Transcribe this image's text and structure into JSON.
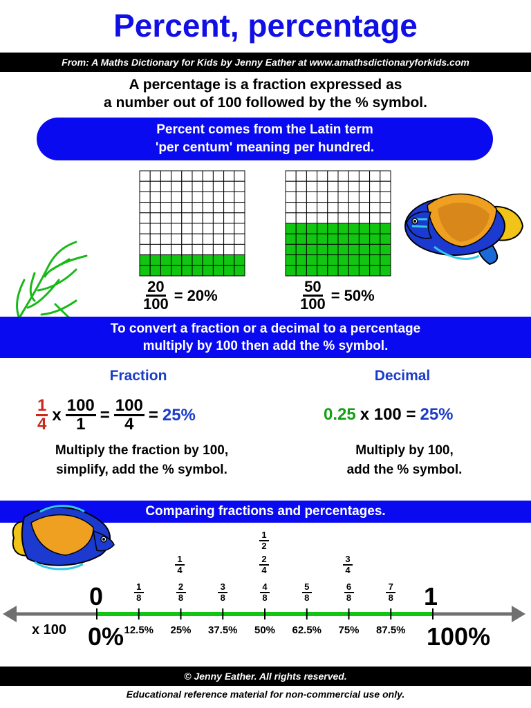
{
  "title": "Percent, percentage",
  "source": "From: A Maths Dictionary for Kids by Jenny Eather at www.amathsdictionaryforkids.com",
  "intro": {
    "line1": "A percentage is a fraction expressed as",
    "line2": "a number out of 100 followed by the % symbol."
  },
  "latin": {
    "line1": "Percent comes from the Latin term",
    "line2": "'per centum' meaning per hundred."
  },
  "grids": [
    {
      "filled_rows": 2,
      "fill_color": "#11c611",
      "numerator": "20",
      "denominator": "100",
      "result": "= 20%"
    },
    {
      "filled_rows": 5,
      "fill_color": "#11c611",
      "numerator": "50",
      "denominator": "100",
      "result": "= 50%"
    }
  ],
  "convert": {
    "line1": "To convert a fraction or a decimal to a percentage",
    "line2": "multiply by 100 then add the % symbol."
  },
  "fraction_col": {
    "heading": "Fraction",
    "f1_num": "1",
    "f1_den": "4",
    "times": "x",
    "f2_num": "100",
    "f2_den": "1",
    "eq1": "=",
    "f3_num": "100",
    "f3_den": "4",
    "eq2": "=",
    "result": "25%",
    "explain1": "Multiply the fraction by 100,",
    "explain2": "simplify, add the % symbol."
  },
  "decimal_col": {
    "heading": "Decimal",
    "decimal": "0.25",
    "rest": "x 100 =",
    "result": "25%",
    "explain1": "Multiply by 100,",
    "explain2": "add the % symbol."
  },
  "compare": "Comparing fractions and percentages.",
  "number_line": {
    "zero": "0",
    "one": "1",
    "x100": "x 100",
    "zero_pct": "0%",
    "hundred_pct": "100%",
    "eighths": [
      "1",
      "2",
      "3",
      "4",
      "5",
      "6",
      "7"
    ],
    "eighth_den": "8",
    "percents": [
      "12.5%",
      "25%",
      "37.5%",
      "50%",
      "62.5%",
      "75%",
      "87.5%"
    ],
    "quarter_1": {
      "n": "1",
      "d": "4"
    },
    "quarter_2": {
      "n": "2",
      "d": "4"
    },
    "quarter_3": {
      "n": "3",
      "d": "4"
    },
    "half": {
      "n": "1",
      "d": "2"
    }
  },
  "colors": {
    "title_blue": "#1010e6",
    "band_blue": "#0a0af0",
    "green": "#11c611",
    "red": "#c8281e",
    "line_gray": "#707070"
  },
  "footer": {
    "copyright": "© Jenny Eather. All rights reserved.",
    "note": "Educational reference material for non-commercial use only."
  }
}
